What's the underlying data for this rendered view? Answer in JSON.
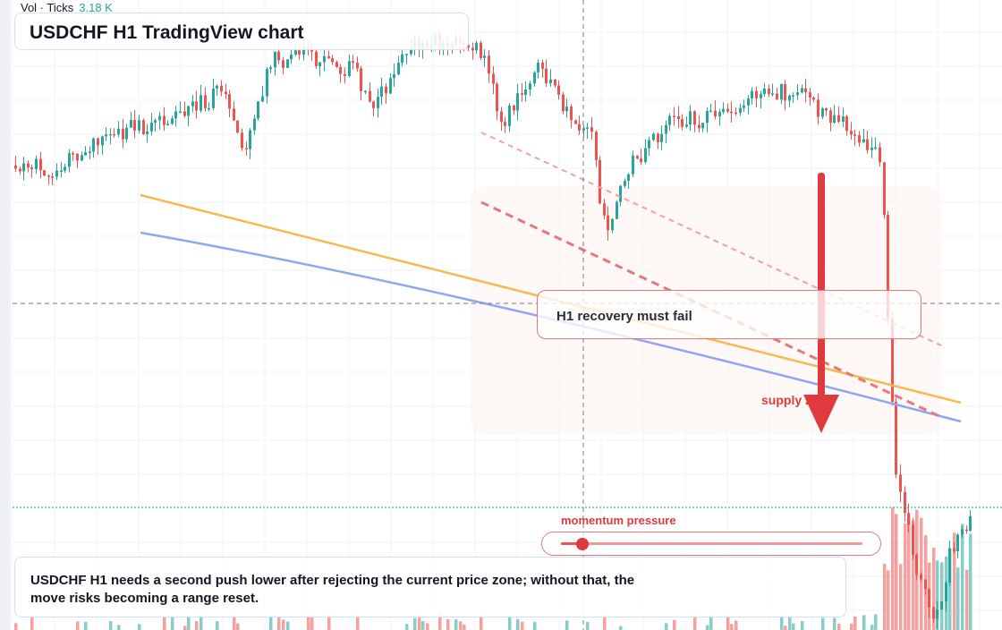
{
  "volume_legend": {
    "label": "Vol · Ticks",
    "value": "3.18 K"
  },
  "title": "USDCHF H1 TradingView chart",
  "callout": {
    "text": "H1 recovery must fail"
  },
  "zone_label": "supply zone",
  "momentum": {
    "label": "momentum pressure",
    "level": 0.07
  },
  "note": "USDCHF H1 needs a second push lower after rejecting the current price zone; without that, the move risks becoming a range reset.",
  "colors": {
    "up": "#26a69a",
    "down": "#ef5350",
    "accent": "#e03a3e",
    "trend_orange": "#f7b955",
    "trend_blue": "#8ea8f0",
    "panel_border": "#cfe0f5"
  }
}
